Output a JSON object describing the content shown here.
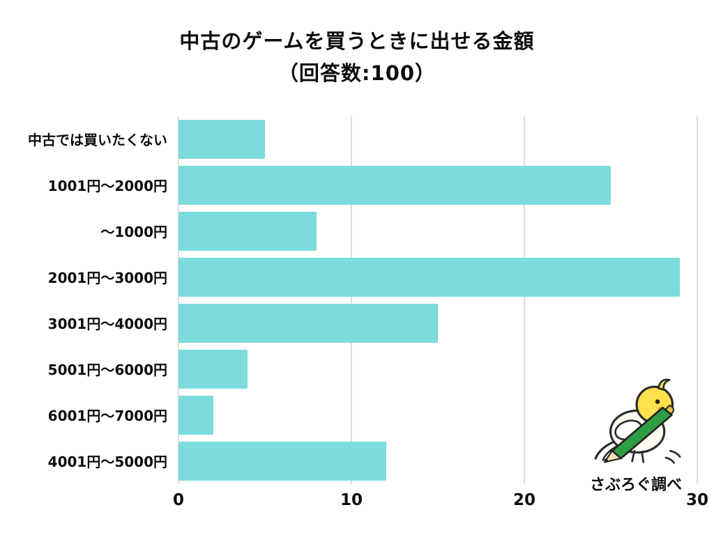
{
  "title": {
    "line1": "中古のゲームを買うときに出せる金額",
    "line2": "（回答数:100）"
  },
  "chart_data": {
    "type": "bar",
    "orientation": "horizontal",
    "title": "中古のゲームを買うときに出せる金額（回答数:100）",
    "categories": [
      "中古では買いたくない",
      "1001円〜2000円",
      "〜1000円",
      "2001円〜3000円",
      "3001円〜4000円",
      "5001円〜6000円",
      "6001円〜7000円",
      "4001円〜5000円"
    ],
    "values": [
      5,
      25,
      8,
      29,
      15,
      4,
      2,
      12
    ],
    "xlabel": "",
    "ylabel": "",
    "xlim": [
      0,
      30
    ],
    "x_ticks": [
      0,
      10,
      20,
      30
    ],
    "grid": true,
    "legend": false,
    "bar_color": "#7CDBDB"
  },
  "footer": {
    "credit": "さぶろぐ調べ",
    "mascot": "bird-with-pencil"
  },
  "colors": {
    "bar": "#7CDBDB",
    "grid": "#dcdcdc",
    "text": "#0d0d0d",
    "background": "#ffffff"
  }
}
